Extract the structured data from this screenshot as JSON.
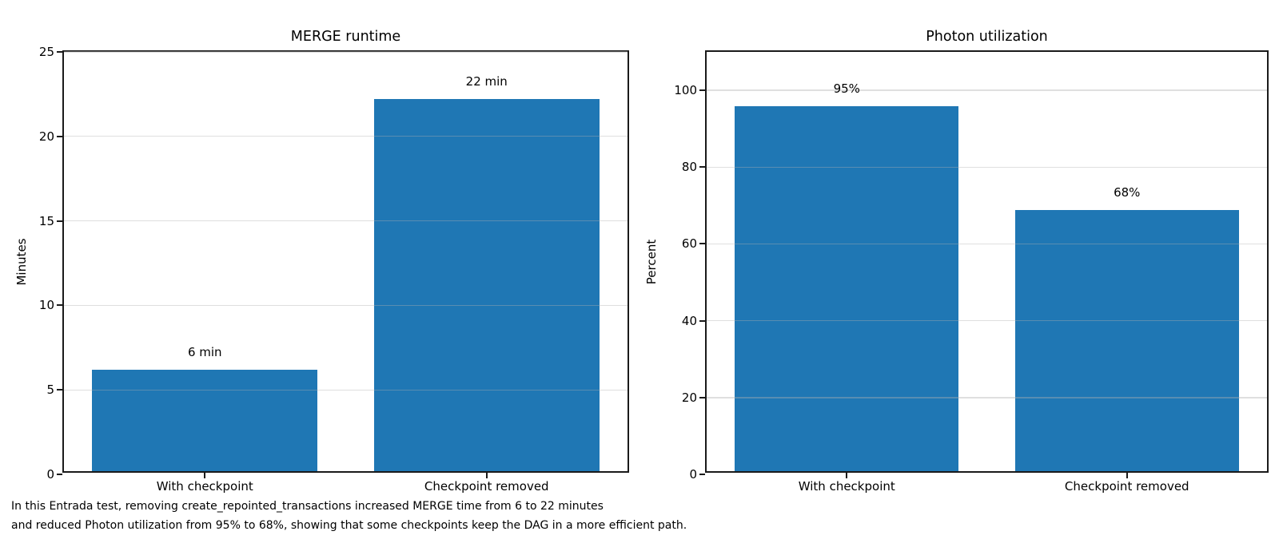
{
  "figure": {
    "background": "#ffffff",
    "bar_color": "#1f77b4",
    "grid_color": "rgba(176,176,176,0.4)",
    "spine_color": "#1a1a1a",
    "text_color": "#000000"
  },
  "caption": {
    "line1": "In this Entrada test, removing create_repointed_transactions increased MERGE time from 6 to 22 minutes",
    "line2": "and reduced Photon utilization from 95% to 68%, showing that some checkpoints keep the DAG in a more efficient path."
  },
  "chart_data": [
    {
      "type": "bar",
      "title": "MERGE runtime",
      "xlabel": "",
      "ylabel": "Minutes",
      "categories": [
        "With checkpoint",
        "Checkpoint removed"
      ],
      "values": [
        6,
        22
      ],
      "bar_labels": [
        "6 min",
        "22 min"
      ],
      "yticks": [
        0,
        5,
        10,
        15,
        20,
        25
      ],
      "ylim": [
        0,
        25
      ],
      "grid": true,
      "legend": false,
      "bar_color": "#1f77b4"
    },
    {
      "type": "bar",
      "title": "Photon utilization",
      "xlabel": "",
      "ylabel": "Percent",
      "categories": [
        "With checkpoint",
        "Checkpoint removed"
      ],
      "values": [
        95,
        68
      ],
      "bar_labels": [
        "95%",
        "68%"
      ],
      "yticks": [
        0,
        20,
        40,
        60,
        80,
        100
      ],
      "ylim": [
        0,
        110
      ],
      "grid": true,
      "legend": false,
      "bar_color": "#1f77b4"
    }
  ]
}
